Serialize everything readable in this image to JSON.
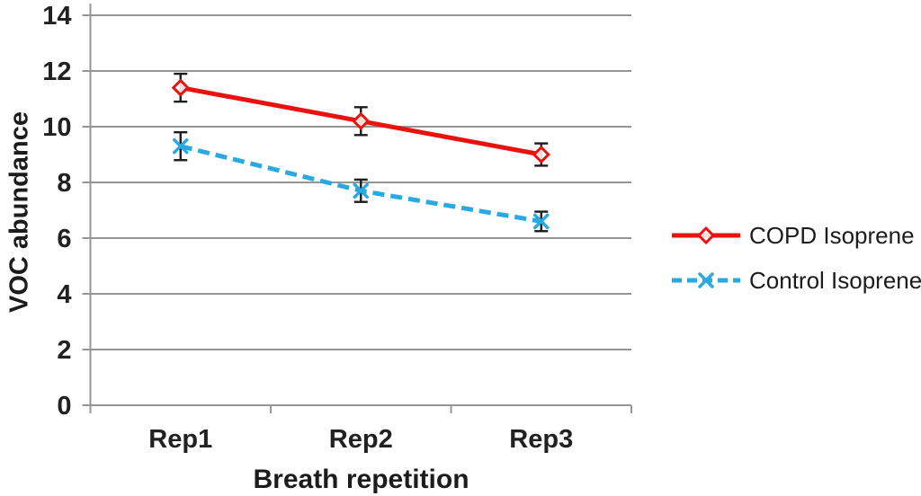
{
  "chart_data": {
    "type": "line",
    "title": "",
    "xlabel": "Breath repetition",
    "ylabel": "VOC abundance",
    "categories": [
      "Rep1",
      "Rep2",
      "Rep3"
    ],
    "ylim": [
      0,
      14
    ],
    "yticks": [
      0,
      2,
      4,
      6,
      8,
      10,
      12,
      14
    ],
    "grid": "horizontal",
    "legend_position": "right",
    "series": [
      {
        "name": "COPD Isoprene",
        "color": "#e8120e",
        "line_style": "solid",
        "marker": "diamond",
        "values": [
          11.4,
          10.2,
          9.0
        ],
        "error_bars": [
          0.5,
          0.5,
          0.4
        ]
      },
      {
        "name": "Control Isoprene",
        "color": "#2aa9e0",
        "line_style": "dashed",
        "marker": "x",
        "values": [
          9.3,
          7.7,
          6.6
        ],
        "error_bars": [
          0.5,
          0.4,
          0.35
        ]
      }
    ]
  },
  "colors": {
    "gridline": "#969696",
    "axis": "#969696",
    "error_bar": "#1c1c1c",
    "text": "#212121",
    "background": "#ffffff"
  }
}
